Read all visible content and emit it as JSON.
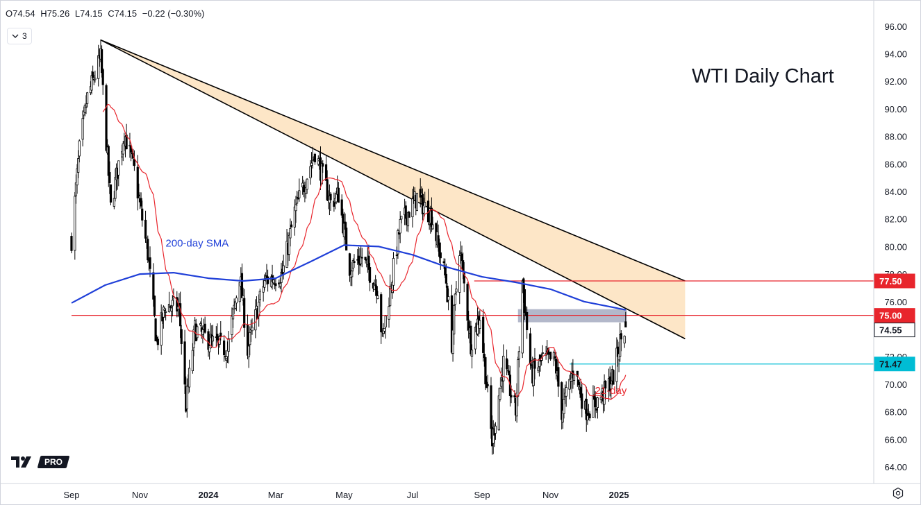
{
  "legend": {
    "open": "O74.54",
    "high": "H75.26",
    "low": "L74.15",
    "close": "C74.15",
    "change": "−0.22 (−0.30%)"
  },
  "indicators_pill": {
    "icon": "chevron-down-icon",
    "count": "3"
  },
  "title": "WTI Daily Chart",
  "logo": {
    "icon": "tradingview-logo",
    "badge": "PRO"
  },
  "colors": {
    "up": "#ffffff",
    "down": "#000000",
    "sma200": "#1f3fd8",
    "ma21": "#e8252c",
    "resistance": "#e8252c",
    "support": "#00bcd4",
    "wedge_fill": "#fde2bd",
    "zone_fill": "#9aa0b8",
    "grid": "#f0f3fa",
    "axis_text": "#131722"
  },
  "chart_data": {
    "type": "candlestick",
    "symbol": "WTI",
    "title": "WTI Daily Chart",
    "x_tick_labels": [
      "Sep",
      "Nov",
      "2024",
      "Mar",
      "May",
      "Jul",
      "Sep",
      "Nov",
      "2025"
    ],
    "y_tick_labels": [
      "64.00",
      "66.00",
      "68.00",
      "70.00",
      "72.00",
      "74.00",
      "76.00",
      "78.00",
      "80.00",
      "82.00",
      "84.00",
      "86.00",
      "88.00",
      "90.00",
      "92.00",
      "94.00",
      "96.00"
    ],
    "ylim": [
      63.0,
      97.6
    ],
    "grid": false,
    "price_anchors": [
      {
        "date": "2023-09-01",
        "close": 80.5
      },
      {
        "date": "2023-09-08",
        "close": 87.0
      },
      {
        "date": "2023-09-15",
        "close": 90.8
      },
      {
        "date": "2023-09-27",
        "close": 93.7
      },
      {
        "date": "2023-10-06",
        "close": 82.8
      },
      {
        "date": "2023-10-18",
        "close": 88.3
      },
      {
        "date": "2023-10-27",
        "close": 85.5
      },
      {
        "date": "2023-11-08",
        "close": 79.5
      },
      {
        "date": "2023-11-16",
        "close": 73.0
      },
      {
        "date": "2023-11-24",
        "close": 75.8
      },
      {
        "date": "2023-12-06",
        "close": 75.5
      },
      {
        "date": "2023-12-12",
        "close": 68.5
      },
      {
        "date": "2023-12-20",
        "close": 74.0
      },
      {
        "date": "2024-01-05",
        "close": 73.0
      },
      {
        "date": "2024-01-18",
        "close": 72.5
      },
      {
        "date": "2024-01-29",
        "close": 78.0
      },
      {
        "date": "2024-02-05",
        "close": 72.5
      },
      {
        "date": "2024-02-20",
        "close": 77.5
      },
      {
        "date": "2024-03-07",
        "close": 78.0
      },
      {
        "date": "2024-03-18",
        "close": 82.5
      },
      {
        "date": "2024-04-05",
        "close": 86.9
      },
      {
        "date": "2024-04-19",
        "close": 83.2
      },
      {
        "date": "2024-04-26",
        "close": 83.8
      },
      {
        "date": "2024-05-06",
        "close": 78.5
      },
      {
        "date": "2024-05-17",
        "close": 79.2
      },
      {
        "date": "2024-05-31",
        "close": 77.0
      },
      {
        "date": "2024-06-04",
        "close": 73.2
      },
      {
        "date": "2024-06-20",
        "close": 81.5
      },
      {
        "date": "2024-07-05",
        "close": 83.6
      },
      {
        "date": "2024-07-18",
        "close": 82.2
      },
      {
        "date": "2024-07-31",
        "close": 77.5
      },
      {
        "date": "2024-08-05",
        "close": 73.0
      },
      {
        "date": "2024-08-12",
        "close": 80.0
      },
      {
        "date": "2024-08-22",
        "close": 73.0
      },
      {
        "date": "2024-08-30",
        "close": 75.0
      },
      {
        "date": "2024-09-10",
        "close": 65.8
      },
      {
        "date": "2024-09-20",
        "close": 71.5
      },
      {
        "date": "2024-10-01",
        "close": 68.0
      },
      {
        "date": "2024-10-07",
        "close": 77.5
      },
      {
        "date": "2024-10-15",
        "close": 70.6
      },
      {
        "date": "2024-10-25",
        "close": 71.8
      },
      {
        "date": "2024-11-05",
        "close": 71.7
      },
      {
        "date": "2024-11-11",
        "close": 68.0
      },
      {
        "date": "2024-11-22",
        "close": 71.2
      },
      {
        "date": "2024-12-02",
        "close": 68.1
      },
      {
        "date": "2024-12-10",
        "close": 68.5
      },
      {
        "date": "2024-12-20",
        "close": 69.5
      },
      {
        "date": "2024-12-27",
        "close": 70.6
      },
      {
        "date": "2025-01-02",
        "close": 73.1
      },
      {
        "date": "2025-01-07",
        "close": 74.15
      }
    ],
    "sma200": [
      {
        "date": "2023-09-01",
        "value": 75.9
      },
      {
        "date": "2023-10-01",
        "value": 77.2
      },
      {
        "date": "2023-11-01",
        "value": 78.0
      },
      {
        "date": "2023-12-01",
        "value": 78.1
      },
      {
        "date": "2024-01-01",
        "value": 77.7
      },
      {
        "date": "2024-02-01",
        "value": 77.5
      },
      {
        "date": "2024-03-01",
        "value": 77.7
      },
      {
        "date": "2024-04-01",
        "value": 78.9
      },
      {
        "date": "2024-05-01",
        "value": 80.1
      },
      {
        "date": "2024-06-01",
        "value": 80.0
      },
      {
        "date": "2024-07-01",
        "value": 79.4
      },
      {
        "date": "2024-08-01",
        "value": 78.5
      },
      {
        "date": "2024-09-01",
        "value": 77.8
      },
      {
        "date": "2024-10-01",
        "value": 77.4
      },
      {
        "date": "2024-11-01",
        "value": 76.9
      },
      {
        "date": "2024-12-01",
        "value": 76.0
      },
      {
        "date": "2025-01-07",
        "value": 75.4
      }
    ],
    "series": [
      {
        "name": "200-day SMA",
        "key": "sma200"
      },
      {
        "name": "21-day",
        "key": "ma21"
      }
    ],
    "annotations": [
      {
        "text": "200-day SMA",
        "date": "2023-12-22",
        "price": 80.0,
        "color": "#1f3fd8"
      },
      {
        "text": "21-day",
        "date": "2025-01-08",
        "price": 69.3,
        "color": "#e8252c"
      }
    ],
    "trendlines": [
      {
        "name": "wedge-upper",
        "start": {
          "date": "2023-09-27",
          "price": 95.0
        },
        "end": {
          "date": "2025-03-01",
          "price": 77.5
        }
      },
      {
        "name": "wedge-lower",
        "start": {
          "date": "2023-09-27",
          "price": 95.0
        },
        "end": {
          "date": "2025-03-01",
          "price": 73.3
        }
      }
    ],
    "levels": [
      {
        "label": "77.50",
        "price": 77.5,
        "from": "2024-08-25",
        "color": "#e8252c"
      },
      {
        "label": "75.00",
        "price": 75.0,
        "from": "2023-09-01",
        "color": "#e8252c"
      },
      {
        "label": "74.55",
        "price": 74.55,
        "from": null,
        "color": "#000000"
      },
      {
        "label": "71.47",
        "price": 71.47,
        "from": "2024-11-18",
        "color": "#00bcd4"
      }
    ],
    "zone": {
      "from": "2024-10-03",
      "to": "2025-01-08",
      "low": 74.5,
      "high": 75.45
    }
  }
}
